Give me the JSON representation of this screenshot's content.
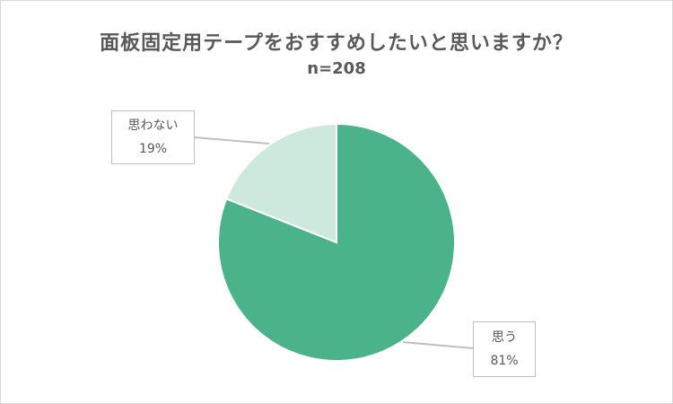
{
  "chart_data": {
    "type": "pie",
    "title": "面板固定用テープをおすすめしたいと思いますか？",
    "subtitle": "n=208",
    "categories": [
      "思う",
      "思わない"
    ],
    "values": [
      81,
      19
    ],
    "unit": "%",
    "colors": [
      "#4bb389",
      "#cde9dd"
    ],
    "labels": [
      {
        "name": "思う",
        "value": "81%"
      },
      {
        "name": "思わない",
        "value": "19%"
      }
    ],
    "legend": "none",
    "start_angle": "12 o'clock, clockwise"
  }
}
